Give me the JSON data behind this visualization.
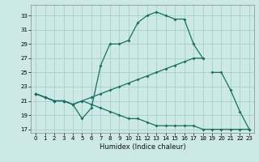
{
  "xlabel": "Humidex (Indice chaleur)",
  "bg_color": "#cce9e5",
  "grid_color": "#aad4d0",
  "line_color": "#1a6e65",
  "xlim": [
    -0.5,
    23.5
  ],
  "ylim": [
    16.5,
    34.5
  ],
  "xticks": [
    0,
    1,
    2,
    3,
    4,
    5,
    6,
    7,
    8,
    9,
    10,
    11,
    12,
    13,
    14,
    15,
    16,
    17,
    18,
    19,
    20,
    21,
    22,
    23
  ],
  "yticks": [
    17,
    19,
    21,
    23,
    25,
    27,
    29,
    31,
    33
  ],
  "line1_x": [
    0,
    1,
    2,
    3,
    4,
    5,
    6,
    7,
    8,
    9,
    10,
    11,
    12,
    13,
    14,
    15,
    16,
    17,
    18
  ],
  "line1_y": [
    22,
    21.5,
    21,
    21,
    20.5,
    18.5,
    20,
    26,
    29,
    29,
    29.5,
    32,
    33,
    33.5,
    33,
    32.5,
    32.5,
    29,
    27
  ],
  "line2_x": [
    0,
    1,
    2,
    3,
    4,
    5,
    6,
    7,
    8,
    9,
    10,
    11,
    12,
    13,
    14,
    15,
    16,
    17,
    18
  ],
  "line2_y": [
    22,
    21.5,
    21,
    21,
    20.5,
    21,
    21.5,
    22,
    22.5,
    23,
    23.5,
    24,
    24.5,
    25,
    25.5,
    26,
    26.5,
    27,
    27
  ],
  "line3_x": [
    0,
    1,
    2,
    3,
    4,
    5,
    6,
    7,
    8,
    9,
    10,
    11,
    12,
    13,
    14,
    15,
    16,
    17,
    18,
    19,
    20,
    21,
    22,
    23
  ],
  "line3_y": [
    22,
    21.5,
    21,
    21,
    20.5,
    21,
    20.5,
    20,
    19.5,
    19,
    18.5,
    18.5,
    18,
    17.5,
    17.5,
    17.5,
    17.5,
    17.5,
    17,
    17,
    17,
    17,
    17,
    17
  ],
  "line4_x": [
    19,
    20,
    21,
    22,
    23
  ],
  "line4_y": [
    25,
    25,
    22.5,
    19.5,
    17
  ]
}
